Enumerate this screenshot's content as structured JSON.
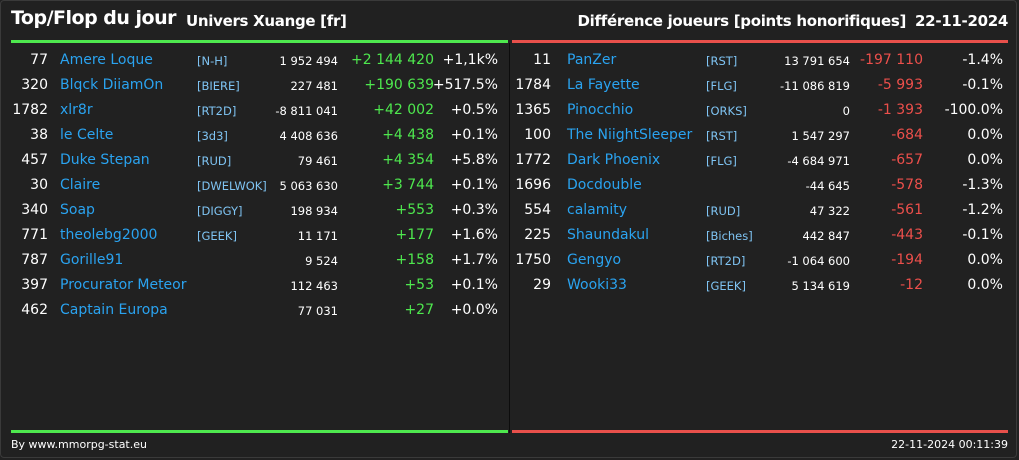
{
  "header": {
    "title": "Top/Flop du jour",
    "universe": "Univers Xuange [fr]",
    "metric": "Différence joueurs [points honorifiques]",
    "date": "22-11-2024"
  },
  "colors": {
    "background": "#212121",
    "top_accent": "#4ee84e",
    "flop_accent": "#e8504b",
    "player_name": "#2aa3f0",
    "guild_tag": "#7fc4f3"
  },
  "top": [
    {
      "rank": "77",
      "name": "Amere Loque",
      "guild": "[N-H]",
      "points": "1 952 494",
      "diff": "+2 144 420",
      "pct": "+1,1k%"
    },
    {
      "rank": "320",
      "name": "Blqck DiiamOn",
      "guild": "[BIERE]",
      "points": "227 481",
      "diff": "+190 639",
      "pct": "+517.5%"
    },
    {
      "rank": "1782",
      "name": "xlr8r",
      "guild": "[RT2D]",
      "points": "-8 811 041",
      "diff": "+42 002",
      "pct": "+0.5%"
    },
    {
      "rank": "38",
      "name": "le Celte",
      "guild": "[3d3]",
      "points": "4 408 636",
      "diff": "+4 438",
      "pct": "+0.1%"
    },
    {
      "rank": "457",
      "name": "Duke Stepan",
      "guild": "[RUD]",
      "points": "79 461",
      "diff": "+4 354",
      "pct": "+5.8%"
    },
    {
      "rank": "30",
      "name": "Claire",
      "guild": "[DWELWOK]",
      "points": "5 063 630",
      "diff": "+3 744",
      "pct": "+0.1%"
    },
    {
      "rank": "340",
      "name": "Soap",
      "guild": "[DIGGY]",
      "points": "198 934",
      "diff": "+553",
      "pct": "+0.3%"
    },
    {
      "rank": "771",
      "name": "theolebg2000",
      "guild": "[GEEK]",
      "points": "11 171",
      "diff": "+177",
      "pct": "+1.6%"
    },
    {
      "rank": "787",
      "name": "Gorille91",
      "guild": "",
      "points": "9 524",
      "diff": "+158",
      "pct": "+1.7%"
    },
    {
      "rank": "397",
      "name": "Procurator Meteor",
      "guild": "",
      "points": "112 463",
      "diff": "+53",
      "pct": "+0.1%"
    },
    {
      "rank": "462",
      "name": "Captain Europa",
      "guild": "",
      "points": "77 031",
      "diff": "+27",
      "pct": "+0.0%"
    }
  ],
  "flop": [
    {
      "rank": "11",
      "name": "PanZer",
      "guild": "[RST]",
      "points": "13 791 654",
      "diff": "-197 110",
      "pct": "-1.4%"
    },
    {
      "rank": "1784",
      "name": "La Fayette",
      "guild": "[FLG]",
      "points": "-11 086 819",
      "diff": "-5 993",
      "pct": "-0.1%"
    },
    {
      "rank": "1365",
      "name": "Pinocchio",
      "guild": "[ORKS]",
      "points": "0",
      "diff": "-1 393",
      "pct": "-100.0%"
    },
    {
      "rank": "100",
      "name": "The NiightSleeper",
      "guild": "[RST]",
      "points": "1 547 297",
      "diff": "-684",
      "pct": "0.0%"
    },
    {
      "rank": "1772",
      "name": "Dark Phoenix",
      "guild": "[FLG]",
      "points": "-4 684 971",
      "diff": "-657",
      "pct": "0.0%"
    },
    {
      "rank": "1696",
      "name": "Docdouble",
      "guild": "",
      "points": "-44 645",
      "diff": "-578",
      "pct": "-1.3%"
    },
    {
      "rank": "554",
      "name": "calamity",
      "guild": "[RUD]",
      "points": "47 322",
      "diff": "-561",
      "pct": "-1.2%"
    },
    {
      "rank": "225",
      "name": "Shaundakul",
      "guild": "[Biches]",
      "points": "442 847",
      "diff": "-443",
      "pct": "-0.1%"
    },
    {
      "rank": "1750",
      "name": "Gengyo",
      "guild": "[RT2D]",
      "points": "-1 064 600",
      "diff": "-194",
      "pct": "0.0%"
    },
    {
      "rank": "29",
      "name": "Wooki33",
      "guild": "[GEEK]",
      "points": "5 134 619",
      "diff": "-12",
      "pct": "0.0%"
    }
  ],
  "footer": {
    "credit": "By www.mmorpg-stat.eu",
    "timestamp": "22-11-2024 00:11:39"
  }
}
